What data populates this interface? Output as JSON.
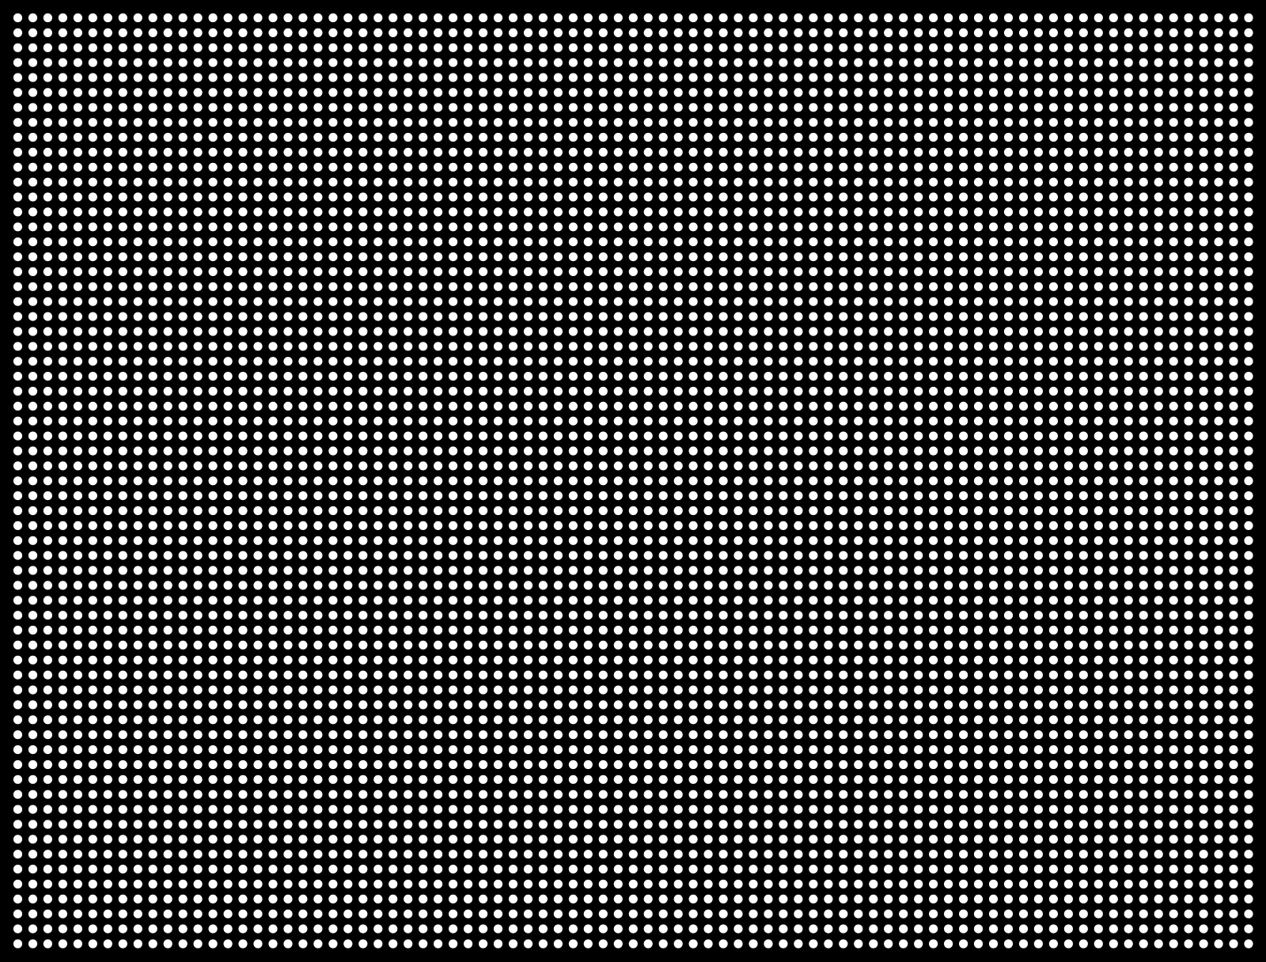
{
  "pattern": {
    "type": "dot-grid",
    "columns": 83,
    "rows": 63,
    "background_color": "#000000",
    "dot_color": "#ffffff"
  }
}
